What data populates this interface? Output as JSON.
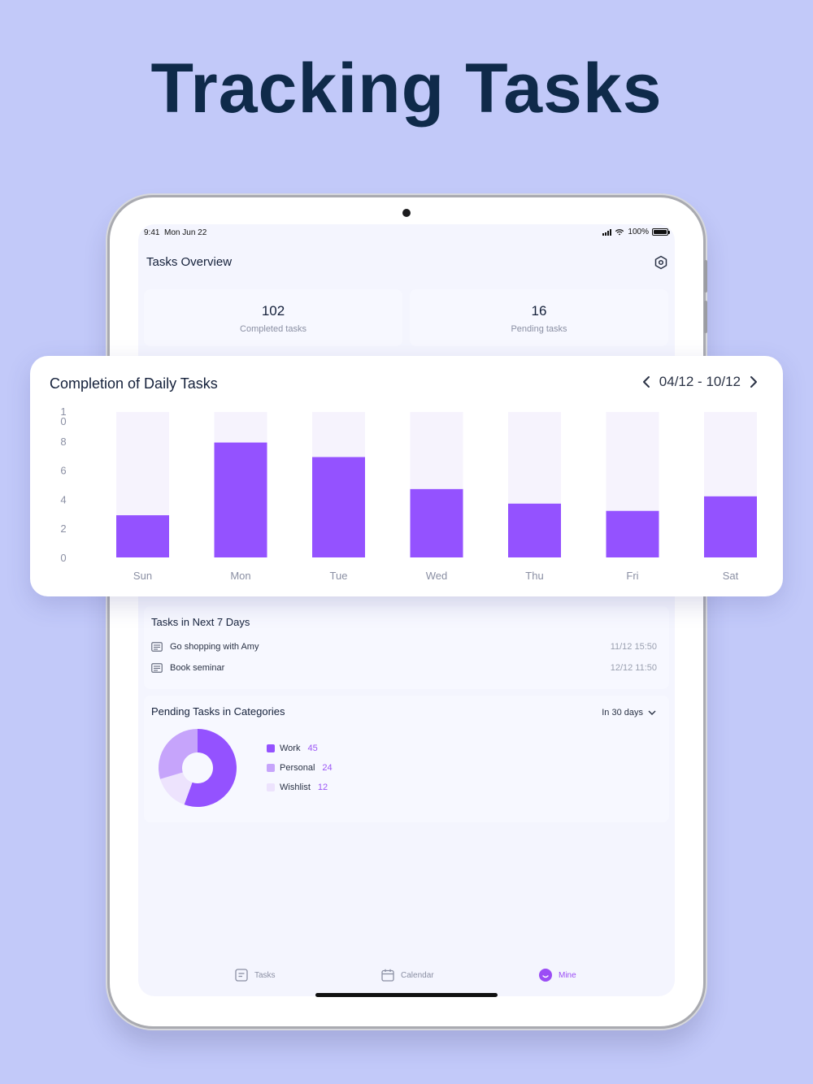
{
  "headline": "Tracking Tasks",
  "status_bar": {
    "time": "9:41",
    "date": "Mon Jun 22",
    "battery": "100%"
  },
  "header": {
    "title": "Tasks Overview",
    "settings_icon": "settings-icon"
  },
  "stats": [
    {
      "value": "102",
      "label": "Completed tasks"
    },
    {
      "value": "16",
      "label": "Pending tasks"
    }
  ],
  "chart_card": {
    "title": "Completion of Daily Tasks",
    "date_range": "04/12 - 10/12",
    "prev_icon": "chevron-left-icon",
    "next_icon": "chevron-right-icon"
  },
  "chart_data": {
    "type": "bar",
    "title": "Completion of Daily Tasks",
    "categories": [
      "Sun",
      "Mon",
      "Tue",
      "Wed",
      "Thu",
      "Fri",
      "Sat"
    ],
    "values": [
      2.9,
      7.9,
      6.9,
      4.7,
      3.7,
      3.2,
      4.2
    ],
    "max_values": [
      10,
      10,
      10,
      10,
      10,
      10,
      10
    ],
    "y_ticks": [
      "0",
      "2",
      "4",
      "6",
      "8",
      "1\n0"
    ],
    "ylim": [
      0,
      10
    ],
    "grid": false,
    "colors": {
      "bar": "#9452ff",
      "track": "#f6f3fd"
    }
  },
  "next_days": {
    "title": "Tasks in Next 7 Days",
    "tasks": [
      {
        "name": "Go shopping with Amy",
        "date": "11/12 15:50"
      },
      {
        "name": "Book seminar",
        "date": "12/12 11:50"
      }
    ]
  },
  "categories": {
    "title": "Pending Tasks in Categories",
    "range": "In 30 days",
    "items": [
      {
        "name": "Work",
        "count": "45",
        "color": "#9452ff"
      },
      {
        "name": "Personal",
        "count": "24",
        "color": "#c6a4fb"
      },
      {
        "name": "Wishlist",
        "count": "12",
        "color": "#ede3fd"
      }
    ]
  },
  "tabbar": [
    {
      "label": "Tasks",
      "icon": "tasks-icon"
    },
    {
      "label": "Calendar",
      "icon": "calendar-icon"
    },
    {
      "label": "Mine",
      "icon": "mine-icon"
    }
  ],
  "colors": {
    "accent": "#9b4df5",
    "background": "#c2c9f9",
    "headline": "#0f2a4a"
  }
}
